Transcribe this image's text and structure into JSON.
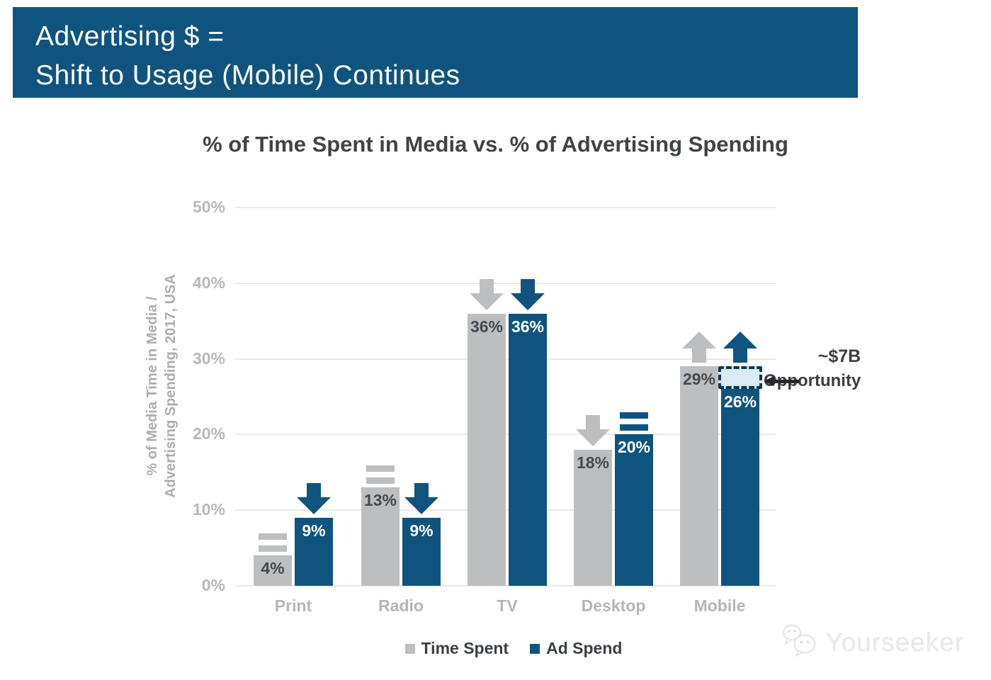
{
  "header": {
    "line1": "Advertising $ =",
    "line2": "Shift to Usage (Mobile) Continues",
    "bg_color": "#0f547e",
    "text_color": "#ffffff"
  },
  "chart_data": {
    "type": "bar",
    "title": "% of Time Spent in Media vs. % of Advertising Spending",
    "ylabel_line1": "% of Media Time in Media /",
    "ylabel_line2": "Advertising Spending, 2017, USA",
    "categories": [
      "Print",
      "Radio",
      "TV",
      "Desktop",
      "Mobile"
    ],
    "series": [
      {
        "name": "Time Spent",
        "color": "#bcbec0",
        "label_color": "#45494e",
        "values": [
          4,
          13,
          36,
          18,
          29
        ],
        "value_labels": [
          "4%",
          "13%",
          "36%",
          "18%",
          "29%"
        ],
        "trend_markers": [
          "equal",
          "equal",
          "down",
          "down",
          "up"
        ]
      },
      {
        "name": "Ad Spend",
        "color": "#0f547e",
        "label_color": "#ffffff",
        "values": [
          9,
          9,
          36,
          20,
          26
        ],
        "value_labels": [
          "9%",
          "9%",
          "36%",
          "20%",
          "26%"
        ],
        "trend_markers": [
          "down",
          "down",
          "down",
          "equal",
          "up"
        ]
      }
    ],
    "y_ticks": [
      {
        "label": "50%",
        "value": 50
      },
      {
        "label": "40%",
        "value": 40
      },
      {
        "label": "30%",
        "value": 30
      },
      {
        "label": "20%",
        "value": 20
      },
      {
        "label": "10%",
        "value": 10
      },
      {
        "label": "0%",
        "value": 0
      }
    ],
    "ylim": [
      0,
      50
    ],
    "grid": true,
    "legend_position": "bottom",
    "annotation": {
      "line1": "~$7B",
      "line2": "Opportunity",
      "arrow": "left",
      "points_to": "Mobile Ad Spend gap"
    },
    "opportunity_box": {
      "category": "Mobile",
      "series": "Ad Spend",
      "from_value": 26,
      "to_value": 29,
      "fill": "#d9ecf8",
      "border_color": "#0d3954"
    }
  },
  "legend": {
    "items": [
      {
        "label": "Time Spent",
        "color": "#bcbec0"
      },
      {
        "label": "Ad Spend",
        "color": "#0f547e"
      }
    ]
  },
  "watermark": {
    "text": "Yourseeker",
    "icon": "chat-bubbles-icon"
  }
}
